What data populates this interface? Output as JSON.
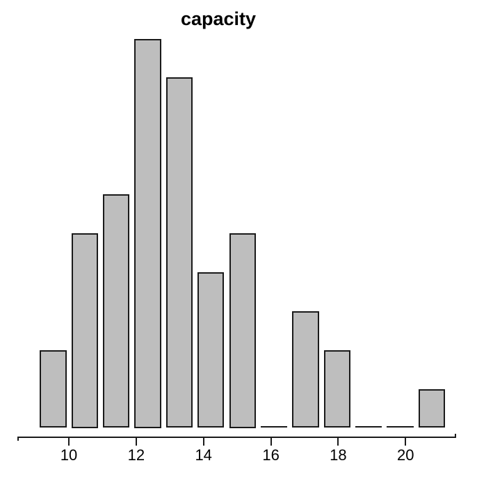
{
  "chart_data": {
    "type": "bar",
    "title": "capacity",
    "categories": [
      9,
      10,
      11,
      12,
      13,
      14,
      15,
      16,
      17,
      18,
      19,
      20,
      21
    ],
    "values": [
      4,
      10,
      12,
      20,
      18,
      8,
      10,
      0,
      6,
      4,
      0,
      0,
      2
    ],
    "x_ticks": [
      10,
      12,
      14,
      16,
      18,
      20
    ],
    "xlabel": "",
    "ylabel": "",
    "ylim": [
      0,
      20
    ],
    "grid": false,
    "legend": "none",
    "colors": {
      "bar_fill": "#bebebe",
      "bar_border": "#1a1a1a",
      "axis": "#1a1a1a",
      "text": "#000000",
      "background": "#ffffff"
    }
  }
}
